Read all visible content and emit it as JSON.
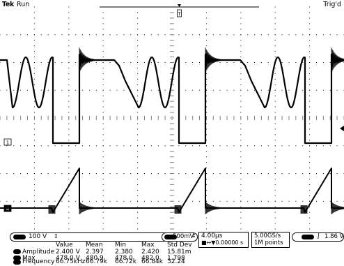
{
  "header": {
    "brand": "Tek",
    "run_state": "Run",
    "trigger_state": "Trig'd"
  },
  "channels": {
    "ch1": {
      "marker": "1",
      "scale": "100 V",
      "coupling_symbol": "↕"
    },
    "ch4": {
      "marker": "4",
      "scale": "500mV",
      "coupling_symbol": "↕"
    }
  },
  "timebase": {
    "scale": "4.00µs",
    "position": "■↦▼0.00000 s"
  },
  "acquisition": {
    "sample_rate": "5.00GS/s",
    "record_length": "1M points"
  },
  "trigger": {
    "slope_symbol": "∫",
    "level": "1.86 V"
  },
  "measurements": {
    "headers": [
      "Value",
      "Mean",
      "Min",
      "Max",
      "Std Dev"
    ],
    "rows": [
      {
        "name": "Amplitude",
        "value": "2.400 V",
        "mean": "2.397",
        "min": "2.380",
        "max": "2.420",
        "std_dev": "15.81m"
      },
      {
        "name": "Max",
        "value": "478.0 V",
        "mean": "480.9",
        "min": "478.0",
        "max": "482.0",
        "std_dev": "1.798"
      },
      {
        "name": "Frequency",
        "value": "66.75kHz",
        "mean": "66.79k",
        "min": "66.72k",
        "max": "66.84k",
        "std_dev": "32.24"
      }
    ]
  },
  "colors": {
    "background": "#ffffff",
    "trace": "#000000",
    "grid": "#000000"
  }
}
